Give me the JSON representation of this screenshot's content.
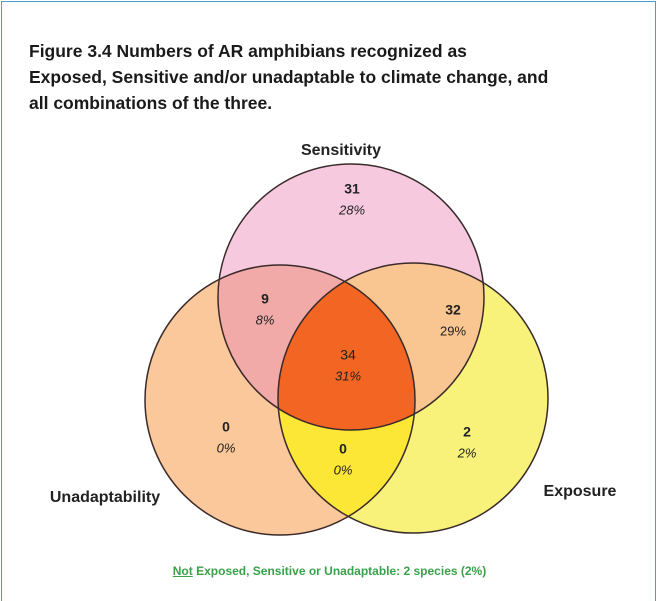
{
  "title": "Figure 3.4 Numbers of AR amphibians recognized as Exposed, Sensitive and/or unadaptable to climate change, and all combinations of the three.",
  "sets": [
    "Sensitivity",
    "Unadaptability",
    "Exposure"
  ],
  "regions": [
    {
      "count": 31,
      "percent": "28%"
    },
    {
      "count": 9,
      "percent": "8%"
    },
    {
      "count": 34,
      "percent": "31%"
    },
    {
      "count": 32,
      "percent": "29%"
    },
    {
      "count": 0,
      "percent": "0%"
    },
    {
      "count": 0,
      "percent": "0%"
    },
    {
      "count": 2,
      "percent": "2%"
    }
  ],
  "footnote": [
    "Not",
    "Exposed, Sensitive or Unadaptable:  2 species (2%)"
  ]
}
